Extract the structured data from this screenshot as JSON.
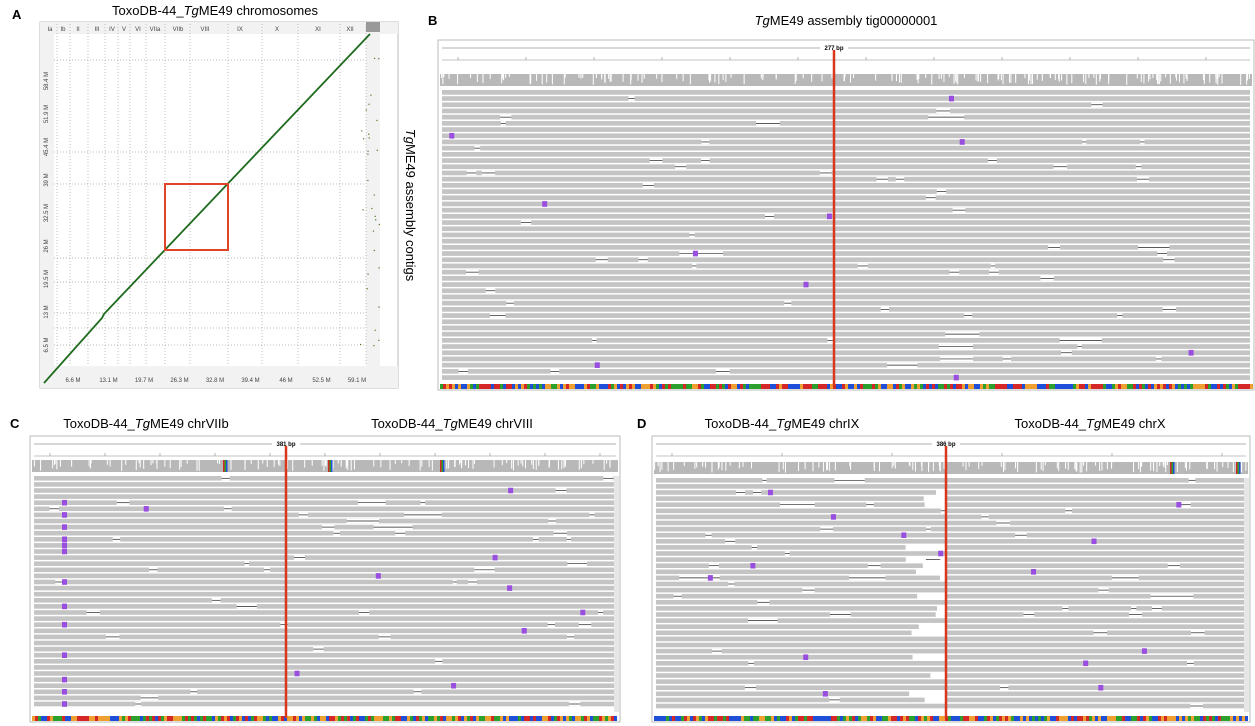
{
  "panel_a": {
    "label": "A",
    "title": [
      "ToxoDB-44_",
      "Tg",
      "ME49 chromosomes"
    ],
    "chromosomes": [
      "Ia",
      "Ib",
      "II",
      "III",
      "IV",
      "V",
      "VI",
      "VIIa",
      "VIIb",
      "VIII",
      "IX",
      "X",
      "XI",
      "XII"
    ],
    "x_ticks": [
      "6.6 M",
      "13.1 M",
      "19.7 M",
      "26.3 M",
      "32.8 M",
      "39.4 M",
      "46 M",
      "52.5 M",
      "59.1 M"
    ],
    "y_ticks": [
      "6.5 M",
      "13 M",
      "19.5 M",
      "26 M",
      "32.5 M",
      "39 M",
      "45.4 M",
      "51.9 M",
      "58.4 M"
    ],
    "y_title": [
      "Tg",
      "ME49 assembly contigs"
    ]
  },
  "panel_b": {
    "label": "B",
    "title": [
      "Tg",
      "ME49 assembly tig00000001"
    ],
    "scale": "277 bp"
  },
  "panel_c": {
    "label": "C",
    "left_title": [
      "ToxoDB-44_",
      "Tg",
      "ME49 chrVIIb"
    ],
    "right_title": [
      "ToxoDB-44_",
      "Tg",
      "ME49 chrVIII"
    ],
    "scale": "381 bp"
  },
  "panel_d": {
    "label": "D",
    "left_title": [
      "ToxoDB-44_",
      "Tg",
      "ME49 chrIX"
    ],
    "right_title": [
      "ToxoDB-44_",
      "Tg",
      "ME49 chrX"
    ],
    "scale": "386 bp"
  }
}
